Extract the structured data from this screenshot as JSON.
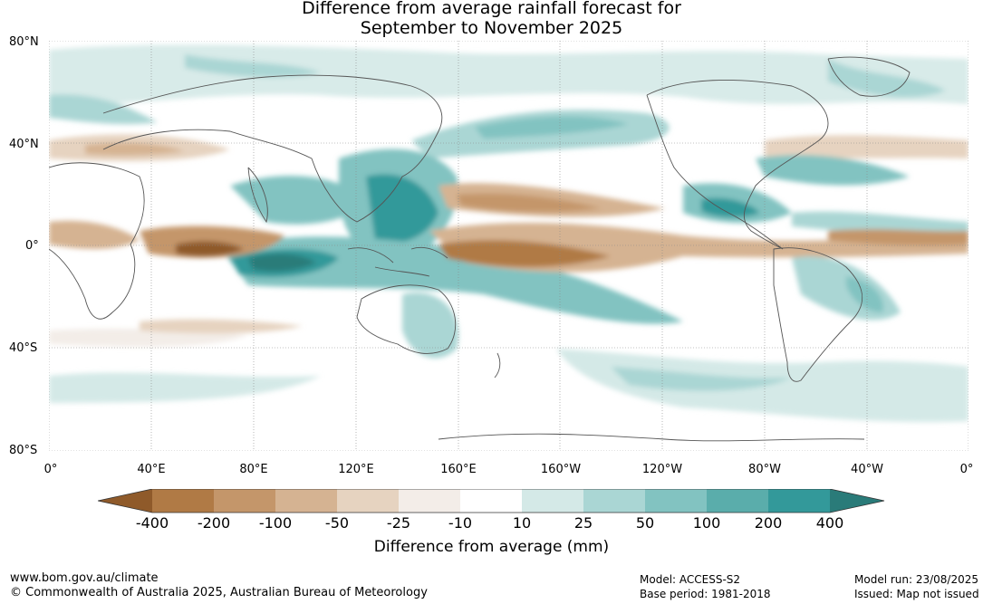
{
  "title": {
    "line1": "Difference from average rainfall forecast for",
    "line2": "September to November 2025"
  },
  "lat_labels": [
    "80°N",
    "40°N",
    "0°",
    "40°S",
    "80°S"
  ],
  "lon_labels": [
    "0°",
    "40°E",
    "80°E",
    "120°E",
    "160°E",
    "160°W",
    "120°W",
    "80°W",
    "40°W",
    "0°"
  ],
  "legend": {
    "ticks": [
      "-400",
      "-200",
      "-100",
      "-50",
      "-25",
      "-10",
      "10",
      "25",
      "50",
      "100",
      "200",
      "400"
    ],
    "colors": [
      "#8f5a2a",
      "#b07a45",
      "#c4966a",
      "#d5b392",
      "#e6d3c0",
      "#f3ede8",
      "#ffffff",
      "#d4e9e7",
      "#aad6d4",
      "#82c3c1",
      "#5aadab",
      "#33999a",
      "#2a7b79"
    ],
    "label": "Difference from average (mm)"
  },
  "footer": {
    "url": "www.bom.gov.au/climate",
    "copyright": "© Commonwealth of Australia 2025, Australian Bureau of Meteorology",
    "model": "Model: ACCESS-S2",
    "base_period": "Base period: 1981-2018",
    "model_run": "Model run: 23/08/2025",
    "issued": "Issued: Map not issued"
  }
}
